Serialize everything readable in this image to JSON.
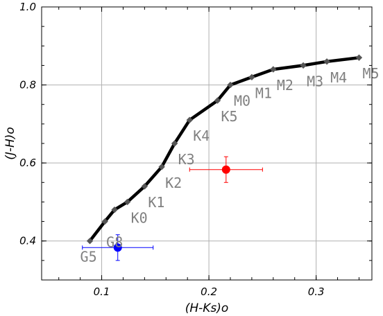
{
  "chart_data": {
    "type": "line",
    "title": "",
    "xlabel": "(H-Ks)o",
    "ylabel": "(J-H)o",
    "xlim": [
      0.044,
      0.352
    ],
    "ylim": [
      0.3,
      1.0
    ],
    "xticks": [
      0.1,
      0.2,
      0.3
    ],
    "xtick_labels": [
      "0.1",
      "0.2",
      "0.3"
    ],
    "yticks": [
      0.4,
      0.6,
      0.8,
      1.0
    ],
    "ytick_labels": [
      "0.4",
      "0.6",
      "0.8",
      "1.0"
    ],
    "grid": true,
    "sequence": {
      "color": "#000000",
      "marker_color": "#555555",
      "x": [
        0.089,
        0.103,
        0.112,
        0.124,
        0.14,
        0.156,
        0.168,
        0.182,
        0.208,
        0.22,
        0.24,
        0.26,
        0.288,
        0.31,
        0.34
      ],
      "y": [
        0.4,
        0.45,
        0.48,
        0.5,
        0.54,
        0.59,
        0.65,
        0.71,
        0.76,
        0.8,
        0.82,
        0.84,
        0.85,
        0.86,
        0.87
      ]
    },
    "spectral_types": [
      {
        "label": "G5",
        "x": 0.089,
        "y": 0.4
      },
      {
        "label": "G8",
        "x": 0.103,
        "y": 0.45
      },
      {
        "label": "K0",
        "x": 0.124,
        "y": 0.5
      },
      {
        "label": "K1",
        "x": 0.14,
        "y": 0.54
      },
      {
        "label": "K2",
        "x": 0.156,
        "y": 0.59
      },
      {
        "label": "K3",
        "x": 0.168,
        "y": 0.65
      },
      {
        "label": "K4",
        "x": 0.182,
        "y": 0.71
      },
      {
        "label": "K5",
        "x": 0.208,
        "y": 0.76
      },
      {
        "label": "M0",
        "x": 0.22,
        "y": 0.8
      },
      {
        "label": "M1",
        "x": 0.24,
        "y": 0.82
      },
      {
        "label": "M2",
        "x": 0.26,
        "y": 0.84
      },
      {
        "label": "M3",
        "x": 0.288,
        "y": 0.85
      },
      {
        "label": "M4",
        "x": 0.31,
        "y": 0.86
      },
      {
        "label": "M5",
        "x": 0.34,
        "y": 0.87
      }
    ],
    "points": [
      {
        "color": "#0000ff",
        "x": 0.115,
        "y": 0.383,
        "xerr": 0.033,
        "yerr": 0.033
      },
      {
        "color": "#ff0000",
        "x": 0.216,
        "y": 0.583,
        "xerr": 0.034,
        "yerr": 0.033
      }
    ]
  }
}
